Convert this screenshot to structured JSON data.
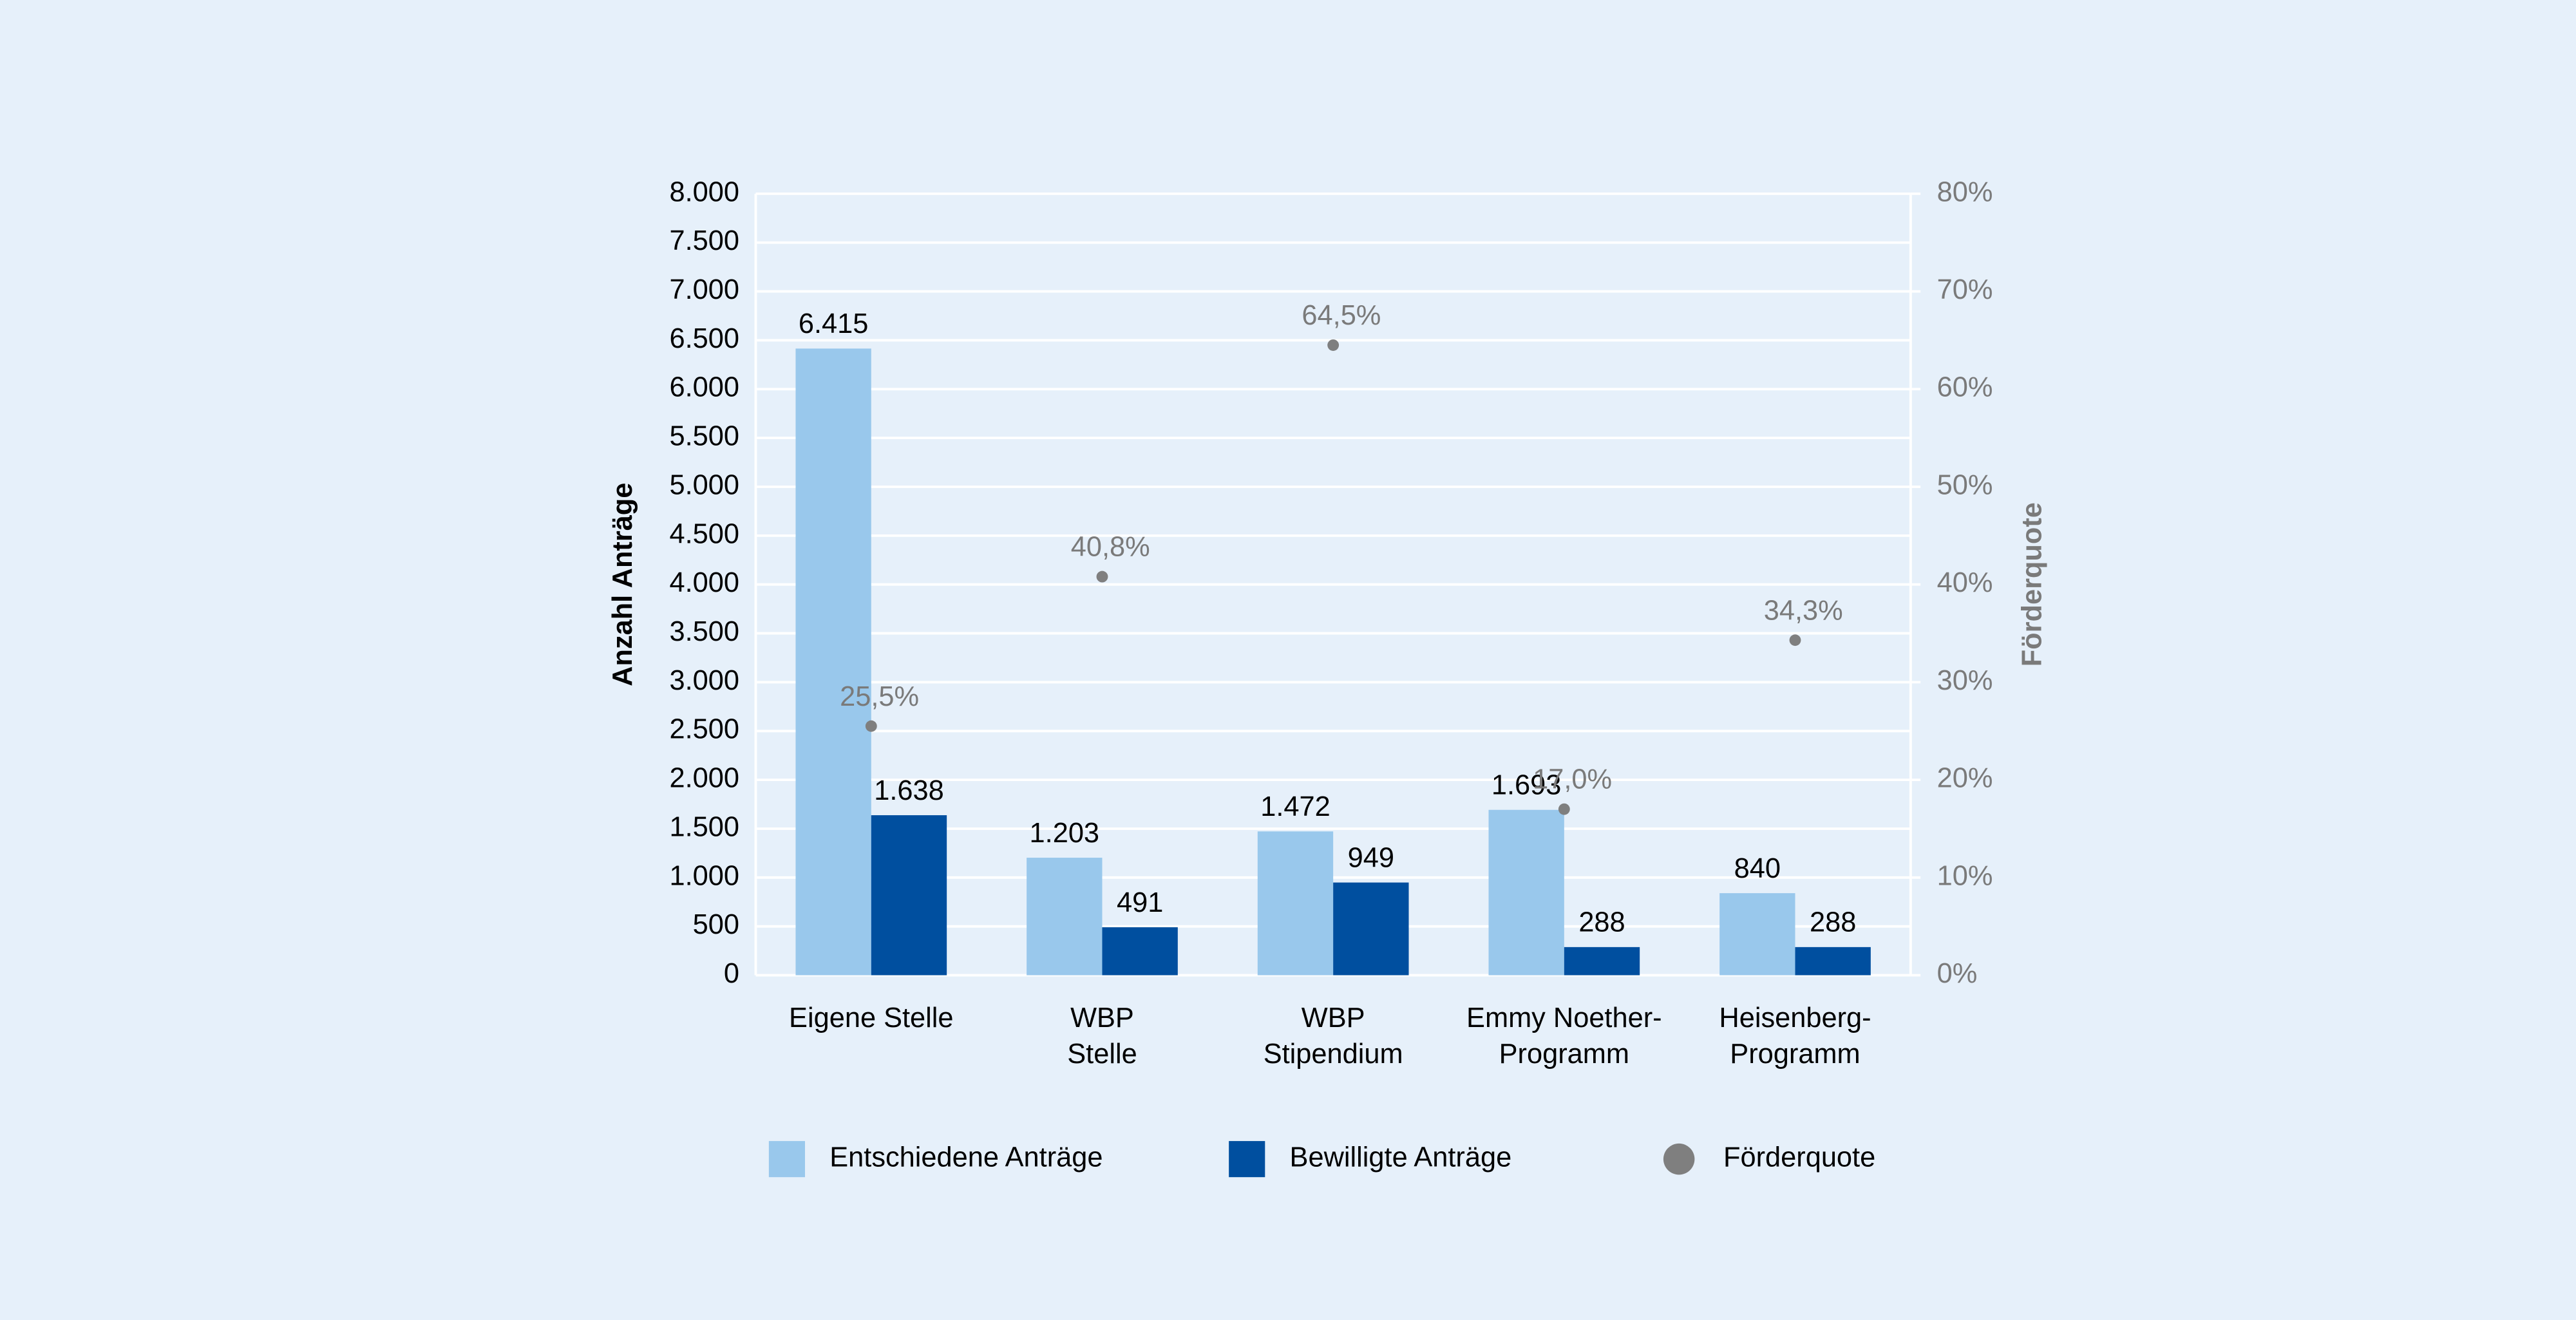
{
  "chart_data": {
    "type": "bar",
    "categories": [
      [
        "Eigene Stelle"
      ],
      [
        "WBP",
        "Stelle"
      ],
      [
        "WBP",
        "Stipendium"
      ],
      [
        "Emmy Noether-",
        "Programm"
      ],
      [
        "Heisenberg-",
        "Programm"
      ]
    ],
    "y_label": "Anzahl Anträge",
    "y2_label": "Förderquote",
    "ylim": [
      0,
      8000
    ],
    "yticks": [
      0,
      500,
      {
        "value": 1000,
        "label": "1.000"
      },
      {
        "value": 1500,
        "label": "1.500"
      },
      {
        "value": 2000,
        "label": "2.000"
      },
      {
        "value": 2500,
        "label": "2.500"
      },
      {
        "value": 3000,
        "label": "3.000"
      },
      {
        "value": 3500,
        "label": "3.500"
      },
      {
        "value": 4000,
        "label": "4.000"
      },
      {
        "value": 4500,
        "label": "4.500"
      },
      {
        "value": 5000,
        "label": "5.000"
      },
      {
        "value": 5500,
        "label": "5.500"
      },
      {
        "value": 6000,
        "label": "6.000"
      },
      {
        "value": 6500,
        "label": "6.500"
      },
      {
        "value": 7000,
        "label": "7.000"
      },
      {
        "value": 7500,
        "label": "7.500"
      },
      {
        "value": 8000,
        "label": "8.000"
      }
    ],
    "y2lim": [
      0,
      80
    ],
    "y2ticks": [
      {
        "value": 0,
        "label": "0%"
      },
      {
        "value": 10,
        "label": "10%"
      },
      {
        "value": 20,
        "label": "20%"
      },
      {
        "value": 30,
        "label": "30%"
      },
      {
        "value": 40,
        "label": "40%"
      },
      {
        "value": 50,
        "label": "50%"
      },
      {
        "value": 60,
        "label": "60%"
      },
      {
        "value": 70,
        "label": "70%"
      },
      {
        "value": 80,
        "label": "80%"
      }
    ],
    "grid": true,
    "series": [
      {
        "name": "Entschiedene Anträge",
        "type": "bar",
        "color": "#99c8ec",
        "values": [
          6415,
          1203,
          1472,
          1693,
          840
        ],
        "value_labels": [
          "6.415",
          "1.203",
          "1.472",
          "1.693",
          "840"
        ]
      },
      {
        "name": "Bewilligte Anträge",
        "type": "bar",
        "color": "#004f9f",
        "values": [
          1638,
          491,
          949,
          288,
          288
        ],
        "value_labels": [
          "1.638",
          "491",
          "949",
          "288",
          "288"
        ]
      },
      {
        "name": "Förderquote",
        "type": "scatter",
        "axis": "y2",
        "color": "#7f7f7f",
        "values": [
          25.5,
          40.8,
          64.5,
          17.0,
          34.3
        ],
        "value_labels": [
          "25,5%",
          "40,8%",
          "64,5%",
          "17,0%",
          "34,3%"
        ]
      }
    ],
    "legend": "bottom"
  }
}
